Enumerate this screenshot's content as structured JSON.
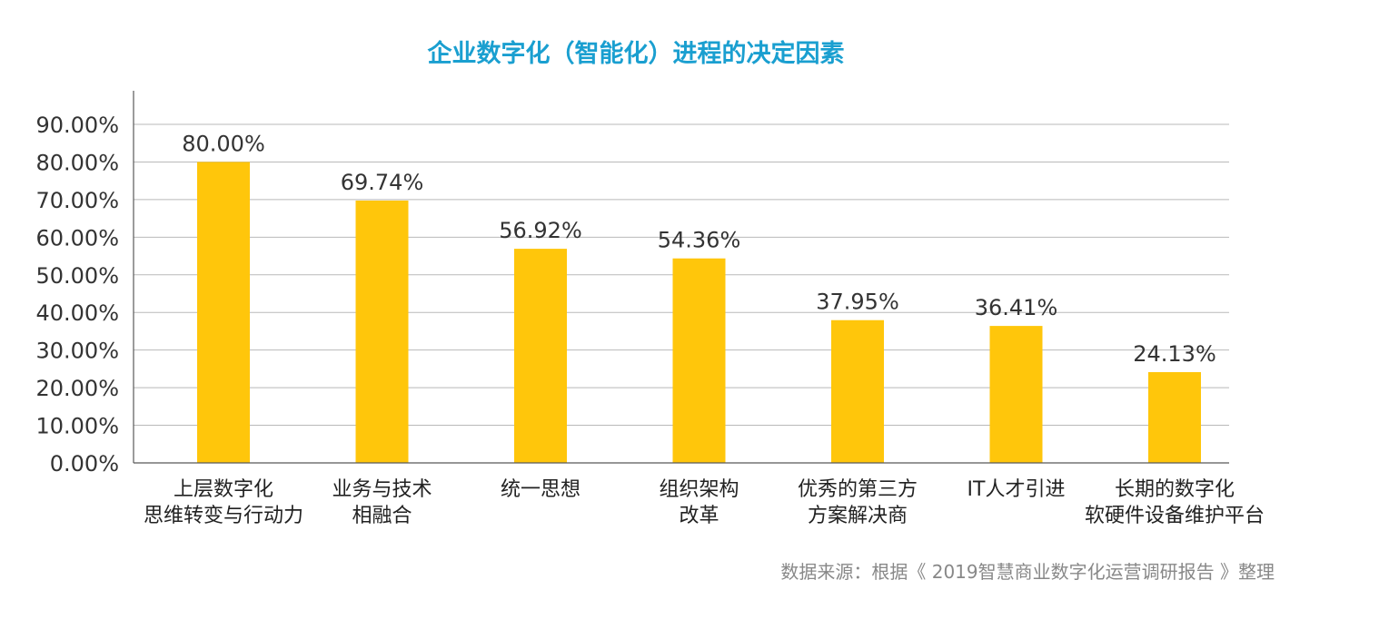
{
  "colors": {
    "title": "#1a9fd0",
    "bar": "#ffc60b",
    "grid": "#b9b9b9",
    "axis": "#595959",
    "source": "#888888"
  },
  "chart_data": {
    "type": "bar",
    "title": "企业数字化（智能化）进程的决定因素",
    "xlabel": "",
    "ylabel": "",
    "ylim": [
      0,
      90
    ],
    "y_ticks": [
      "0.00%",
      "10.00%",
      "20.00%",
      "30.00%",
      "40.00%",
      "50.00%",
      "60.00%",
      "70.00%",
      "80.00%",
      "90.00%"
    ],
    "grid": true,
    "legend": "none",
    "categories": [
      [
        "上层数字化",
        "思维转变与行动力"
      ],
      [
        "业务与技术",
        "相融合"
      ],
      [
        "统一思想"
      ],
      [
        "组织架构",
        "改革"
      ],
      [
        "优秀的第三方",
        "方案解决商"
      ],
      [
        "IT人才引进"
      ],
      [
        "长期的数字化",
        "软硬件设备维护平台"
      ]
    ],
    "values": [
      80.0,
      69.74,
      56.92,
      54.36,
      37.95,
      36.41,
      24.13
    ],
    "data_labels": [
      "80.00%",
      "69.74%",
      "56.92%",
      "54.36%",
      "37.95%",
      "36.41%",
      "24.13%"
    ],
    "source": "数据来源：根据《 2019智慧商业数字化运营调研报告 》整理"
  }
}
